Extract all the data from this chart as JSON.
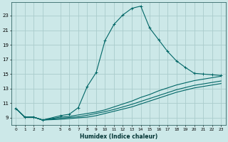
{
  "xlabel": "Humidex (Indice chaleur)",
  "ylabel": "",
  "bg_color": "#cce8e8",
  "grid_color": "#aacccc",
  "line_color": "#006666",
  "xlim": [
    -0.5,
    23.5
  ],
  "ylim": [
    8.0,
    24.8
  ],
  "xticks": [
    0,
    1,
    2,
    3,
    5,
    6,
    7,
    8,
    9,
    10,
    11,
    12,
    13,
    14,
    15,
    16,
    17,
    18,
    19,
    20,
    21,
    22,
    23
  ],
  "yticks": [
    9,
    11,
    13,
    15,
    17,
    19,
    21,
    23
  ],
  "series": [
    {
      "x": [
        0,
        1,
        2,
        3,
        5,
        6,
        7,
        8,
        9,
        10,
        11,
        12,
        13,
        14,
        15,
        16,
        17,
        18,
        19,
        20,
        21,
        22,
        23
      ],
      "y": [
        10.3,
        9.1,
        9.1,
        8.7,
        9.3,
        9.5,
        10.4,
        13.3,
        15.2,
        19.6,
        21.8,
        23.1,
        24.0,
        24.3,
        21.3,
        19.7,
        18.1,
        16.8,
        15.9,
        15.1,
        15.0,
        14.9,
        14.8
      ],
      "marker": "+"
    },
    {
      "x": [
        0,
        1,
        2,
        3,
        5,
        6,
        7,
        8,
        9,
        10,
        11,
        12,
        13,
        14,
        15,
        16,
        17,
        18,
        19,
        20,
        21,
        22,
        23
      ],
      "y": [
        10.3,
        9.1,
        9.1,
        8.7,
        9.1,
        9.2,
        9.4,
        9.6,
        9.8,
        10.1,
        10.5,
        10.9,
        11.3,
        11.8,
        12.2,
        12.7,
        13.1,
        13.5,
        13.8,
        14.1,
        14.3,
        14.5,
        14.7
      ],
      "marker": null
    },
    {
      "x": [
        0,
        1,
        2,
        3,
        5,
        6,
        7,
        8,
        9,
        10,
        11,
        12,
        13,
        14,
        15,
        16,
        17,
        18,
        19,
        20,
        21,
        22,
        23
      ],
      "y": [
        10.3,
        9.1,
        9.1,
        8.7,
        8.95,
        9.05,
        9.15,
        9.35,
        9.6,
        9.85,
        10.15,
        10.5,
        10.85,
        11.25,
        11.65,
        12.05,
        12.45,
        12.85,
        13.15,
        13.45,
        13.65,
        13.85,
        14.05
      ],
      "marker": null
    },
    {
      "x": [
        0,
        1,
        2,
        3,
        5,
        6,
        7,
        8,
        9,
        10,
        11,
        12,
        13,
        14,
        15,
        16,
        17,
        18,
        19,
        20,
        21,
        22,
        23
      ],
      "y": [
        10.3,
        9.1,
        9.1,
        8.7,
        8.8,
        8.9,
        9.0,
        9.1,
        9.3,
        9.6,
        9.9,
        10.2,
        10.5,
        10.9,
        11.3,
        11.7,
        12.1,
        12.5,
        12.8,
        13.1,
        13.3,
        13.5,
        13.7
      ],
      "marker": null
    }
  ]
}
